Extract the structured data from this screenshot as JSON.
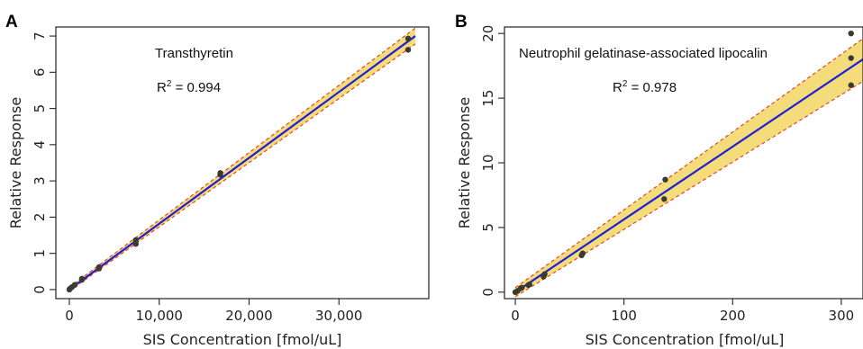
{
  "chart_data": [
    {
      "type": "scatter",
      "panel_label": "A",
      "annotation_title": "Transthyretin",
      "annotation_r2_prefix": "R",
      "annotation_r2_sup": "2",
      "annotation_r2_value": " = 0.994",
      "xlabel": "SIS Concentration [fmol/uL]",
      "ylabel": "Relative Response",
      "xlim": [
        -1500,
        40000
      ],
      "ylim": [
        -0.25,
        7.25
      ],
      "x_ticks": [
        0,
        10000,
        20000,
        30000
      ],
      "x_tick_labels": [
        "0",
        "10,000",
        "20,000",
        "30,000"
      ],
      "y_ticks": [
        0,
        1,
        2,
        3,
        4,
        5,
        6,
        7
      ],
      "y_tick_labels": [
        "0",
        "1",
        "2",
        "3",
        "4",
        "5",
        "6",
        "7"
      ],
      "points": {
        "x": [
          0,
          100,
          300,
          600,
          1400,
          1400,
          3300,
          3300,
          7400,
          7400,
          16800,
          16800,
          37700,
          37700
        ],
        "y": [
          0.0,
          0.03,
          0.07,
          0.13,
          0.27,
          0.3,
          0.58,
          0.62,
          1.26,
          1.37,
          3.17,
          3.22,
          6.62,
          6.93
        ]
      },
      "fit": {
        "x": [
          0,
          38500
        ],
        "y": [
          0.0,
          7.0
        ]
      },
      "band_upper": {
        "x": [
          0,
          38500
        ],
        "y": [
          0.06,
          7.22
        ]
      },
      "band_lower": {
        "x": [
          0,
          38500
        ],
        "y": [
          -0.04,
          6.78
        ]
      },
      "colors": {
        "fit_line": "#1f1fd6",
        "band_fill": "#f5dc7a",
        "band_edge": "#e04a2a",
        "points": "#3a3a30",
        "frame": "#222222"
      }
    },
    {
      "type": "scatter",
      "panel_label": "B",
      "annotation_title": "Neutrophil gelatinase-associated lipocalin",
      "annotation_r2_prefix": "R",
      "annotation_r2_sup": "2",
      "annotation_r2_value": " = 0.978",
      "xlabel": "SIS Concentration [fmol/uL]",
      "ylabel": "Relative Response",
      "xlim": [
        -10,
        320
      ],
      "ylim": [
        -0.5,
        20.5
      ],
      "x_ticks": [
        0,
        100,
        200,
        300
      ],
      "x_tick_labels": [
        "0",
        "100",
        "200",
        "300"
      ],
      "y_ticks": [
        0,
        5,
        10,
        15,
        20
      ],
      "y_tick_labels": [
        "0",
        "5",
        "10",
        "15",
        "20"
      ],
      "points": {
        "x": [
          0,
          2,
          5,
          6,
          12,
          13,
          26,
          27,
          61,
          62,
          137,
          138,
          309,
          309,
          309
        ],
        "y": [
          0.0,
          0.1,
          0.3,
          0.35,
          0.55,
          0.6,
          1.2,
          1.4,
          2.85,
          3.0,
          7.2,
          8.7,
          16.0,
          18.1,
          20.0
        ]
      },
      "fit": {
        "x": [
          0,
          320
        ],
        "y": [
          0.0,
          18.0
        ]
      },
      "band_upper": {
        "x": [
          0,
          320
        ],
        "y": [
          0.35,
          19.6
        ]
      },
      "band_lower": {
        "x": [
          0,
          320
        ],
        "y": [
          -0.35,
          16.3
        ]
      },
      "colors": {
        "fit_line": "#1f1fd6",
        "band_fill": "#f5dc7a",
        "band_edge": "#e04a2a",
        "points": "#3a3a30",
        "frame": "#222222"
      }
    }
  ]
}
